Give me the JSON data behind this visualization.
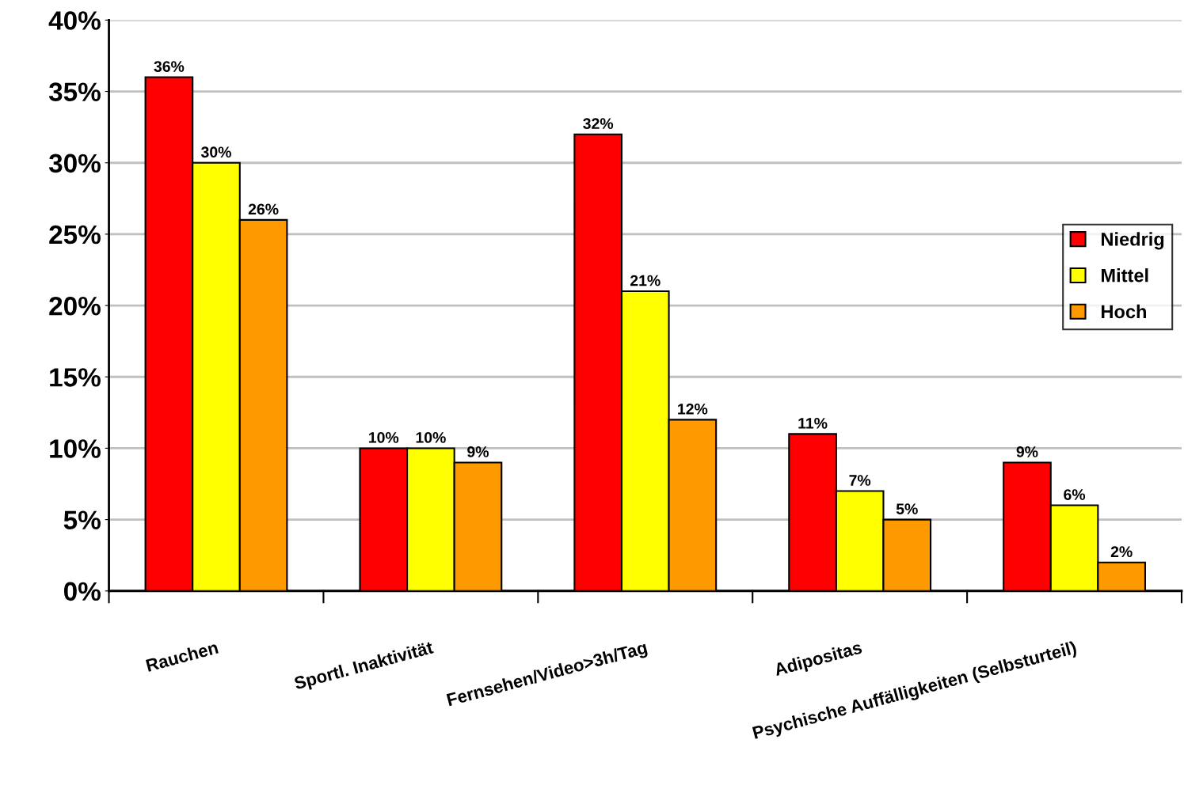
{
  "chart_data": {
    "type": "bar",
    "categories": [
      "Rauchen",
      "Sportl. Inaktivität",
      "Fernsehen/Video>3h/Tag",
      "Adipositas",
      "Psychische Auffälligkeiten (Selbsturteil)"
    ],
    "series": [
      {
        "name": "Niedrig",
        "color": "#ff0000",
        "values": [
          36,
          10,
          32,
          11,
          9
        ],
        "value_labels": [
          "36%",
          "10%",
          "32%",
          "11%",
          "9%"
        ]
      },
      {
        "name": "Mittel",
        "color": "#ffff00",
        "values": [
          30,
          10,
          21,
          7,
          6
        ],
        "value_labels": [
          "30%",
          "10%",
          "21%",
          "7%",
          "6%"
        ]
      },
      {
        "name": "Hoch",
        "color": "#ff9900",
        "values": [
          26,
          9,
          12,
          5,
          2
        ],
        "value_labels": [
          "26%",
          "9%",
          "12%",
          "5%",
          "2%"
        ]
      }
    ],
    "ylim": [
      0,
      40
    ],
    "yticks": [
      {
        "value": 0,
        "label": "0%"
      },
      {
        "value": 5,
        "label": "5%"
      },
      {
        "value": 10,
        "label": "10%"
      },
      {
        "value": 15,
        "label": "15%"
      },
      {
        "value": 20,
        "label": "20%"
      },
      {
        "value": 25,
        "label": "25%"
      },
      {
        "value": 30,
        "label": "30%"
      },
      {
        "value": 35,
        "label": "35%"
      },
      {
        "value": 40,
        "label": "40%"
      }
    ],
    "grid": "y",
    "legend": "center right"
  }
}
